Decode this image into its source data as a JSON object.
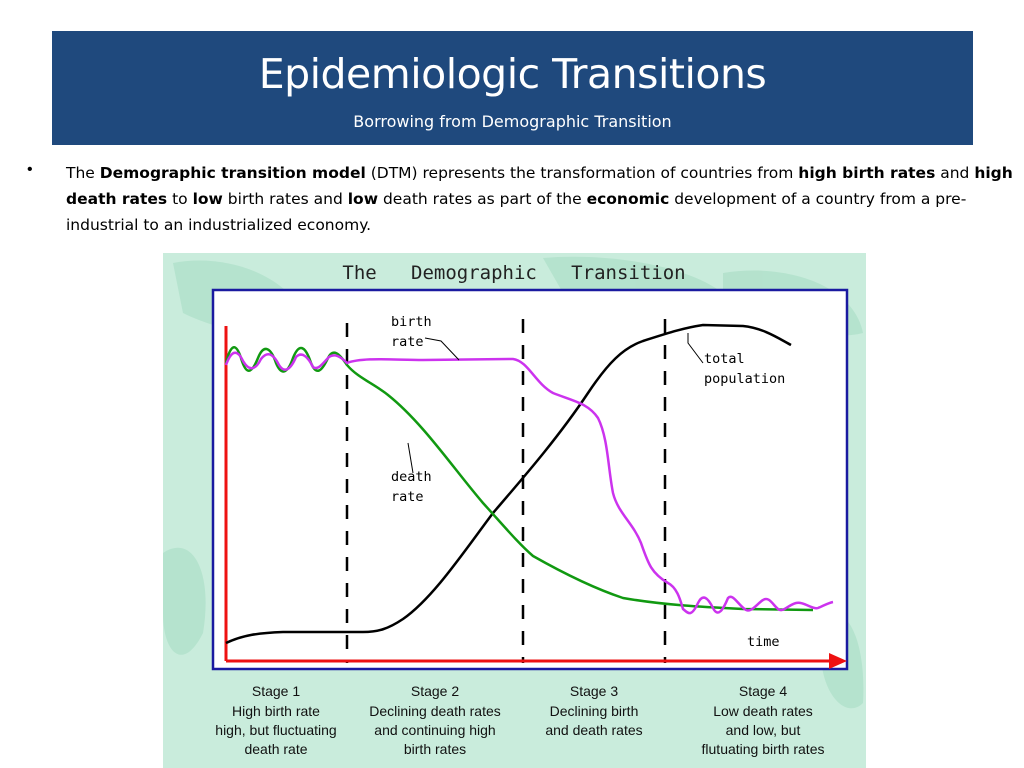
{
  "slide": {
    "title": "Epidemiologic Transitions",
    "subtitle": "Borrowing from Demographic Transition"
  },
  "body": {
    "bullet": "•",
    "p1": "The ",
    "b1": "Demographic transition model",
    "p2": " (DTM) represents the transformation of countries from ",
    "b2": "high birth rates",
    "p3": " and ",
    "b3": "high death rates",
    "p4": " to ",
    "b4": "low",
    "p5": " birth rates and ",
    "b5": "low",
    "p6": " death rates as part of the ",
    "b6": "economic",
    "p7": " development of a country from a pre-industrial to an industrialized economy."
  },
  "figure": {
    "title": "The   Demographic   Transition",
    "labels": {
      "birth_rate_1": "birth",
      "birth_rate_2": "rate",
      "death_rate_1": "death",
      "death_rate_2": "rate",
      "total_pop_1": "total",
      "total_pop_2": "population",
      "time": "time"
    },
    "stages": [
      {
        "title": "Stage 1",
        "line1": "High birth rate",
        "line2": "high, but fluctuating",
        "line3": "death rate"
      },
      {
        "title": "Stage 2",
        "line1": "Declining death rates",
        "line2": "and continuing high",
        "line3": "birth rates"
      },
      {
        "title": "Stage 3",
        "line1": "Declining birth",
        "line2": "and death rates",
        "line3": ""
      },
      {
        "title": "Stage 4",
        "line1": "Low death rates",
        "line2": "and low, but",
        "line3": "flutuating birth rates"
      }
    ],
    "colors": {
      "birth_rate": "#cc33ee",
      "death_rate": "#119911",
      "total_population": "#000000",
      "axis": "#ee1111",
      "frame": "#1a1aa0"
    }
  }
}
